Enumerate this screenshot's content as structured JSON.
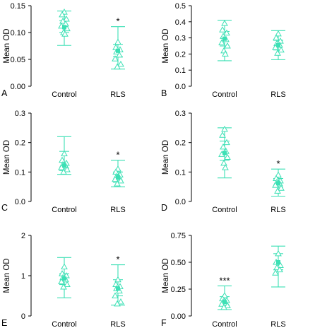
{
  "accent_color": "#3DE0B5",
  "chart_data": [
    {
      "type": "scatter",
      "panel": "A",
      "ylabel": "Mean OD",
      "categories": [
        "Control",
        "RLS"
      ],
      "ylim": [
        0,
        0.15
      ],
      "yticks": [
        0.0,
        0.05,
        0.1,
        0.15
      ],
      "ytick_labels": [
        "0.00",
        "0.05",
        "0.10",
        "0.15"
      ],
      "groups": [
        {
          "category": "Control",
          "mean": 0.11,
          "error_bar": [
            0.076,
            0.14
          ],
          "inner_bar": [
            0.1,
            0.122
          ],
          "points": [
            0.138,
            0.133,
            0.125,
            0.121,
            0.116,
            0.112,
            0.107,
            0.1,
            0.097
          ],
          "significance": ""
        },
        {
          "category": "RLS",
          "mean": 0.066,
          "error_bar": [
            0.032,
            0.111
          ],
          "inner_bar": [
            0.055,
            0.078
          ],
          "points": [
            0.082,
            0.072,
            0.068,
            0.064,
            0.058,
            0.051,
            0.041,
            0.036
          ],
          "significance": "*"
        }
      ]
    },
    {
      "type": "scatter",
      "panel": "B",
      "ylabel": "Mean OD",
      "categories": [
        "Control",
        "RLS"
      ],
      "ylim": [
        0,
        0.5
      ],
      "yticks": [
        0.0,
        0.1,
        0.2,
        0.3,
        0.4,
        0.5
      ],
      "ytick_labels": [
        "0.0",
        "0.1",
        "0.2",
        "0.3",
        "0.4",
        "0.5"
      ],
      "groups": [
        {
          "category": "Control",
          "mean": 0.295,
          "error_bar": [
            0.158,
            0.41
          ],
          "inner_bar": [
            0.25,
            0.34
          ],
          "points": [
            0.39,
            0.35,
            0.33,
            0.31,
            0.29,
            0.27,
            0.25,
            0.22,
            0.2
          ],
          "significance": ""
        },
        {
          "category": "RLS",
          "mean": 0.255,
          "error_bar": [
            0.165,
            0.345
          ],
          "inner_bar": [
            0.225,
            0.285
          ],
          "points": [
            0.325,
            0.3,
            0.28,
            0.265,
            0.255,
            0.24,
            0.225,
            0.205
          ],
          "significance": ""
        }
      ]
    },
    {
      "type": "scatter",
      "panel": "C",
      "ylabel": "Mean OD",
      "categories": [
        "Control",
        "RLS"
      ],
      "ylim": [
        0,
        0.3
      ],
      "yticks": [
        0.0,
        0.1,
        0.2,
        0.3
      ],
      "ytick_labels": [
        "0.0",
        "0.1",
        "0.2",
        "0.3"
      ],
      "groups": [
        {
          "category": "Control",
          "mean": 0.122,
          "error_bar": [
            0.092,
            0.22
          ],
          "inner_bar": [
            0.105,
            0.17
          ],
          "points": [
            0.162,
            0.14,
            0.13,
            0.125,
            0.12,
            0.115,
            0.108,
            0.1
          ],
          "significance": ""
        },
        {
          "category": "RLS",
          "mean": 0.082,
          "error_bar": [
            0.05,
            0.14
          ],
          "inner_bar": [
            0.065,
            0.1
          ],
          "points": [
            0.11,
            0.1,
            0.09,
            0.085,
            0.08,
            0.075,
            0.07,
            0.06
          ],
          "significance": "*"
        }
      ]
    },
    {
      "type": "scatter",
      "panel": "D",
      "ylabel": "Mean OD",
      "categories": [
        "Control",
        "RLS"
      ],
      "ylim": [
        0,
        0.3
      ],
      "yticks": [
        0.0,
        0.1,
        0.2,
        0.3
      ],
      "ytick_labels": [
        "0.0",
        "0.1",
        "0.2",
        "0.3"
      ],
      "groups": [
        {
          "category": "Control",
          "mean": 0.165,
          "error_bar": [
            0.08,
            0.25
          ],
          "inner_bar": [
            0.14,
            0.205
          ],
          "points": [
            0.245,
            0.225,
            0.2,
            0.185,
            0.17,
            0.16,
            0.15,
            0.13,
            0.115
          ],
          "significance": ""
        },
        {
          "category": "RLS",
          "mean": 0.062,
          "error_bar": [
            0.018,
            0.11
          ],
          "inner_bar": [
            0.048,
            0.078
          ],
          "points": [
            0.09,
            0.078,
            0.07,
            0.065,
            0.06,
            0.055,
            0.045,
            0.035
          ],
          "significance": "*"
        }
      ]
    },
    {
      "type": "scatter",
      "panel": "E",
      "ylabel": "Mean OD",
      "categories": [
        "Control",
        "RLS"
      ],
      "ylim": [
        0,
        2
      ],
      "yticks": [
        0,
        1,
        2
      ],
      "ytick_labels": [
        "0",
        "1",
        "2"
      ],
      "groups": [
        {
          "category": "Control",
          "mean": 0.93,
          "error_bar": [
            0.45,
            1.45
          ],
          "inner_bar": [
            0.78,
            1.05
          ],
          "points": [
            1.22,
            1.05,
            1.0,
            0.95,
            0.9,
            0.85,
            0.78,
            0.72
          ],
          "significance": ""
        },
        {
          "category": "RLS",
          "mean": 0.68,
          "error_bar": [
            0.27,
            1.27
          ],
          "inner_bar": [
            0.5,
            0.9
          ],
          "points": [
            0.9,
            0.78,
            0.73,
            0.68,
            0.62,
            0.5,
            0.35,
            0.3
          ],
          "significance": "*"
        }
      ]
    },
    {
      "type": "scatter",
      "panel": "F",
      "ylabel": "Mean OD",
      "categories": [
        "Control",
        "RLS"
      ],
      "ylim": [
        0,
        0.75
      ],
      "yticks": [
        0.0,
        0.25,
        0.5,
        0.75
      ],
      "ytick_labels": [
        "0.00",
        "0.25",
        "0.50",
        "0.75"
      ],
      "groups": [
        {
          "category": "Control",
          "mean": 0.13,
          "error_bar": [
            0.06,
            0.28
          ],
          "inner_bar": [
            0.1,
            0.18
          ],
          "points": [
            0.19,
            0.16,
            0.145,
            0.13,
            0.12,
            0.11,
            0.095,
            0.08
          ],
          "significance": "***"
        },
        {
          "category": "RLS",
          "mean": 0.5,
          "error_bar": [
            0.27,
            0.65
          ],
          "inner_bar": [
            0.43,
            0.58
          ],
          "points": [
            0.58,
            0.5,
            0.47,
            0.45,
            0.43,
            0.4
          ],
          "significance": ""
        }
      ]
    }
  ]
}
